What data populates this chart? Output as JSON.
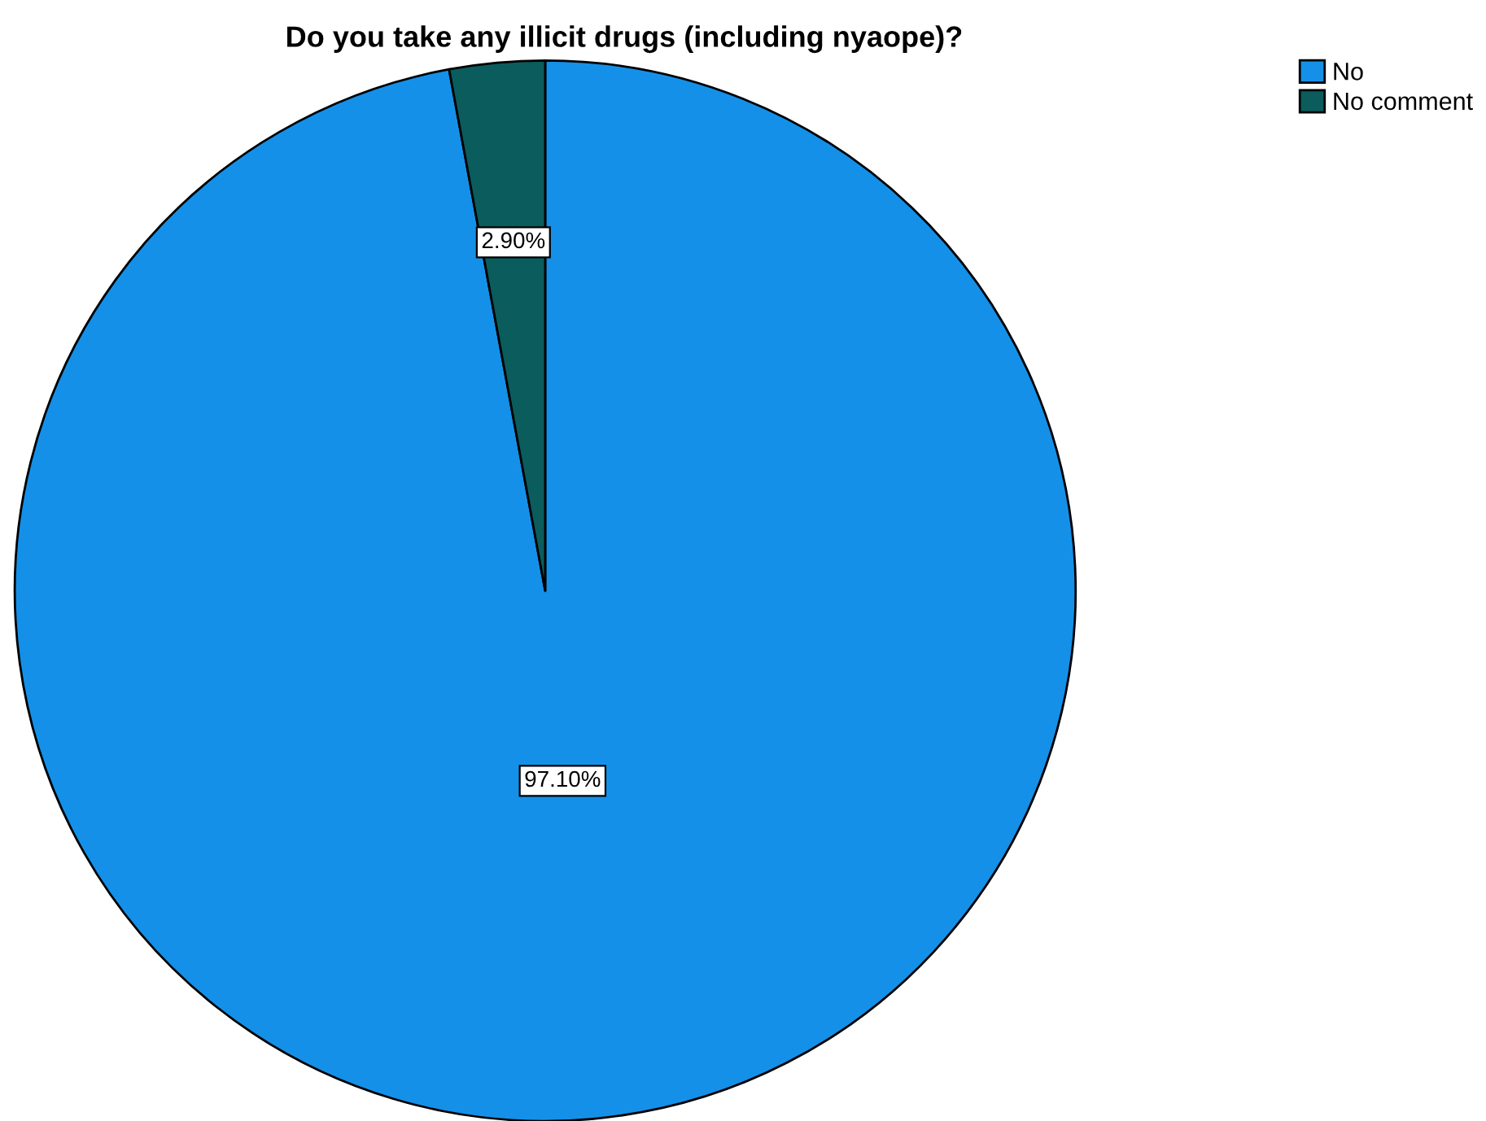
{
  "chart_data": {
    "type": "pie",
    "title": "Do you take any illicit drugs (including nyaope)?",
    "categories": [
      "No",
      "No comment"
    ],
    "values": [
      97.1,
      2.9
    ],
    "colors": [
      "#1590e8",
      "#0b5c5c"
    ],
    "value_labels": [
      "97.10%",
      "2.90%"
    ],
    "legend": "top right"
  }
}
